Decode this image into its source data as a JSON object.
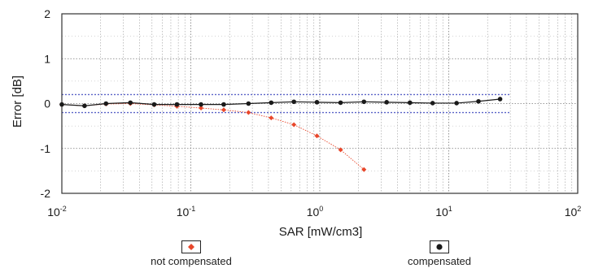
{
  "chart_data": {
    "type": "scatter",
    "xlabel": "SAR [mW/cm3]",
    "ylabel": "Error [dB]",
    "xscale": "log",
    "xlim": [
      0.01,
      100
    ],
    "ylim": [
      -2,
      2
    ],
    "yticks": [
      2,
      1,
      0,
      -1,
      -2
    ],
    "xticks": [
      {
        "base": "10",
        "exp": "-2"
      },
      {
        "base": "10",
        "exp": "-1"
      },
      {
        "base": "10",
        "exp": "0"
      },
      {
        "base": "10",
        "exp": "1"
      },
      {
        "base": "10",
        "exp": "2"
      }
    ],
    "grid": true,
    "tolerance_band": [
      -0.2,
      0.2
    ],
    "legend_position": "bottom",
    "series": [
      {
        "name": "not compensated",
        "color": "#e8472b",
        "marker": "diamond",
        "points": [
          {
            "x": 0.01,
            "y": -0.02
          },
          {
            "x": 0.015,
            "y": -0.05
          },
          {
            "x": 0.022,
            "y": -0.01
          },
          {
            "x": 0.034,
            "y": 0.0
          },
          {
            "x": 0.052,
            "y": -0.03
          },
          {
            "x": 0.078,
            "y": -0.06
          },
          {
            "x": 0.12,
            "y": -0.1
          },
          {
            "x": 0.18,
            "y": -0.14
          },
          {
            "x": 0.28,
            "y": -0.2
          },
          {
            "x": 0.42,
            "y": -0.32
          },
          {
            "x": 0.63,
            "y": -0.47
          },
          {
            "x": 0.95,
            "y": -0.72
          },
          {
            "x": 1.45,
            "y": -1.03
          },
          {
            "x": 2.2,
            "y": -1.47
          }
        ]
      },
      {
        "name": "compensated",
        "color": "#1a1a1a",
        "marker": "circle",
        "points": [
          {
            "x": 0.01,
            "y": -0.02
          },
          {
            "x": 0.015,
            "y": -0.05
          },
          {
            "x": 0.022,
            "y": 0.0
          },
          {
            "x": 0.034,
            "y": 0.02
          },
          {
            "x": 0.052,
            "y": -0.02
          },
          {
            "x": 0.078,
            "y": -0.02
          },
          {
            "x": 0.12,
            "y": -0.02
          },
          {
            "x": 0.18,
            "y": -0.02
          },
          {
            "x": 0.28,
            "y": 0.0
          },
          {
            "x": 0.42,
            "y": 0.02
          },
          {
            "x": 0.63,
            "y": 0.04
          },
          {
            "x": 0.95,
            "y": 0.03
          },
          {
            "x": 1.45,
            "y": 0.02
          },
          {
            "x": 2.2,
            "y": 0.04
          },
          {
            "x": 3.3,
            "y": 0.03
          },
          {
            "x": 5.0,
            "y": 0.02
          },
          {
            "x": 7.5,
            "y": 0.01
          },
          {
            "x": 11.5,
            "y": 0.01
          },
          {
            "x": 17.0,
            "y": 0.05
          },
          {
            "x": 25.0,
            "y": 0.1
          }
        ]
      }
    ]
  },
  "legend": {
    "items": [
      {
        "label": "not compensated",
        "color": "#e8472b",
        "marker": "diamond"
      },
      {
        "label": "compensated",
        "color": "#1a1a1a",
        "marker": "circle"
      }
    ]
  }
}
